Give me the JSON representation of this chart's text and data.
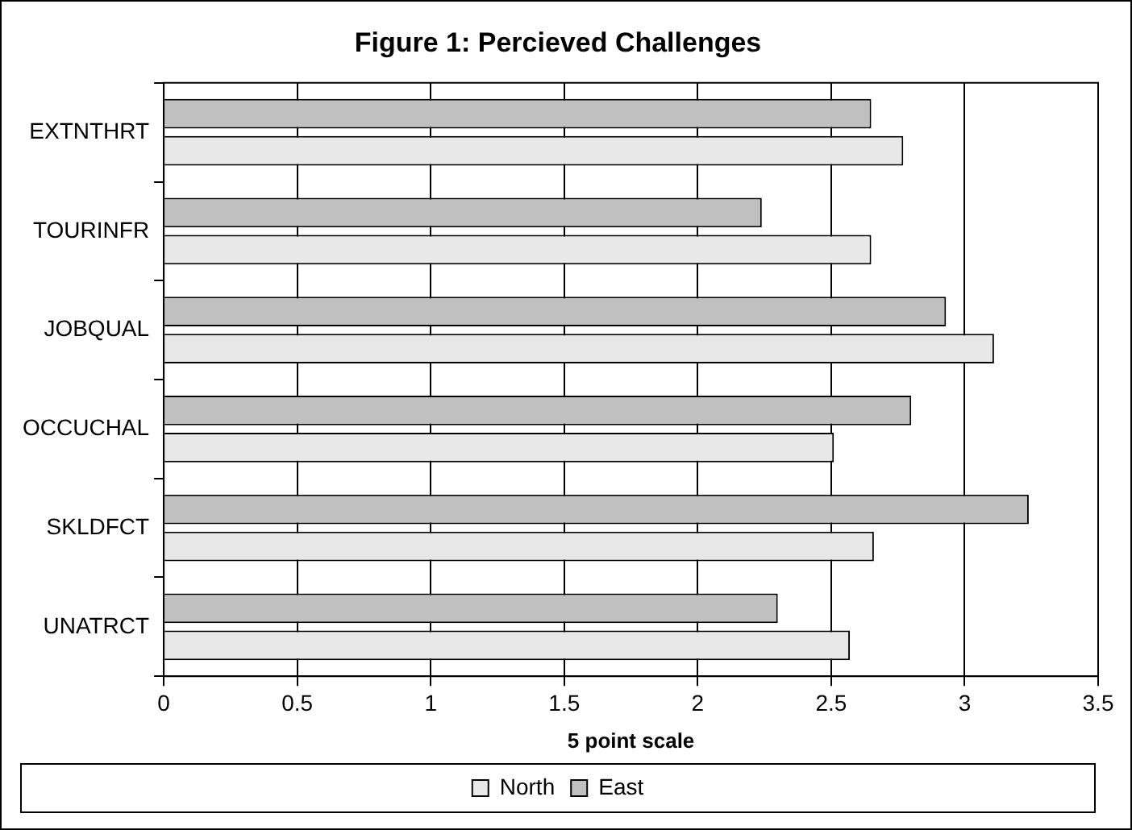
{
  "chart_data": {
    "type": "bar",
    "orientation": "horizontal",
    "title": "Figure 1: Percieved Challenges",
    "xlabel": "5 point scale",
    "categories": [
      "EXTNTHRT",
      "TOURINFR",
      "JOBQUAL",
      "OCCUCHAL",
      "SKLDFCT",
      "UNATRCT"
    ],
    "series": [
      {
        "name": "North",
        "color": "#e8e8e8",
        "values": [
          2.77,
          2.65,
          3.11,
          2.51,
          2.66,
          2.57
        ]
      },
      {
        "name": "East",
        "color": "#c0c0c0",
        "values": [
          2.65,
          2.24,
          2.93,
          2.8,
          3.24,
          2.3
        ]
      }
    ],
    "xlim": [
      0,
      3.5
    ],
    "xticks": [
      0,
      0.5,
      1,
      1.5,
      2,
      2.5,
      3,
      3.5
    ],
    "grid": "x",
    "legend": "bottom"
  }
}
